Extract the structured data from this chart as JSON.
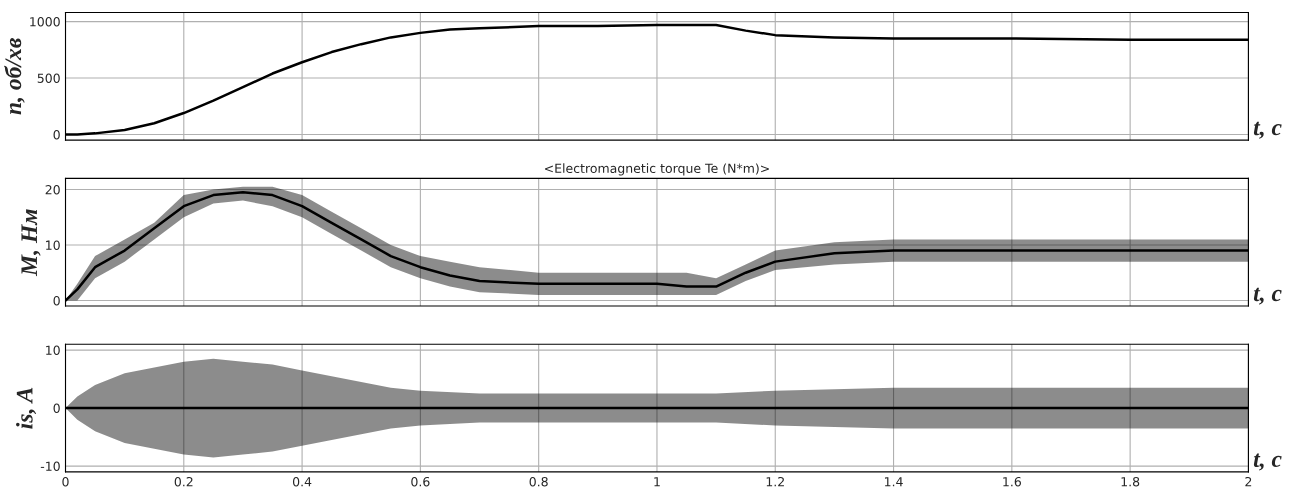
{
  "chart_data": [
    {
      "type": "line",
      "ylabel": "n, об/хв",
      "xlabel": "t, c",
      "xlim": [
        0,
        2
      ],
      "xticks": [
        0,
        0.2,
        0.4,
        0.6,
        0.8,
        1,
        1.2,
        1.4,
        1.6,
        1.8,
        2
      ],
      "ylim": [
        -50,
        1080
      ],
      "yticks": [
        0,
        500,
        1000
      ],
      "grid": true,
      "tick_labels": "y",
      "series": [
        {
          "color": "#000000",
          "x": [
            0,
            0.02,
            0.05,
            0.1,
            0.15,
            0.2,
            0.25,
            0.3,
            0.35,
            0.4,
            0.45,
            0.5,
            0.55,
            0.6,
            0.65,
            0.7,
            0.8,
            0.9,
            1.0,
            1.1,
            1.15,
            1.2,
            1.3,
            1.4,
            1.6,
            1.8,
            2.0
          ],
          "values": [
            0,
            0,
            10,
            40,
            100,
            190,
            300,
            420,
            540,
            640,
            730,
            800,
            860,
            900,
            930,
            940,
            960,
            960,
            970,
            970,
            920,
            880,
            860,
            850,
            850,
            840,
            840
          ]
        }
      ]
    },
    {
      "type": "line",
      "title": "<Electromagnetic torque Te (N*m)>",
      "ylabel": "M, Нм",
      "xlabel": "t, c",
      "xlim": [
        0,
        2
      ],
      "xticks": [
        0,
        0.2,
        0.4,
        0.6,
        0.8,
        1,
        1.2,
        1.4,
        1.6,
        1.8,
        2
      ],
      "ylim": [
        -1,
        22
      ],
      "yticks": [
        0,
        10,
        20
      ],
      "grid": true,
      "tick_labels": "y",
      "series": [
        {
          "color": "#000000",
          "x": [
            0,
            0.02,
            0.05,
            0.1,
            0.15,
            0.2,
            0.25,
            0.3,
            0.35,
            0.4,
            0.45,
            0.5,
            0.55,
            0.6,
            0.65,
            0.7,
            0.8,
            0.9,
            1.0,
            1.05,
            1.1,
            1.15,
            1.2,
            1.3,
            1.4,
            1.5,
            1.6,
            1.8,
            2.0
          ],
          "values": [
            0,
            2,
            6,
            9,
            13,
            17,
            19,
            19.5,
            19,
            17,
            14,
            11,
            8,
            6,
            4.5,
            3.5,
            3,
            3,
            3,
            2.5,
            2.5,
            5,
            7,
            8.5,
            9,
            9,
            9,
            9,
            9
          ],
          "lower": [
            0,
            0,
            4,
            7,
            11,
            15,
            17.5,
            18,
            17,
            15,
            12,
            9,
            6,
            4,
            2.5,
            1.5,
            1,
            1,
            1,
            1,
            1,
            3.5,
            5.5,
            6.5,
            7,
            7,
            7,
            7,
            7
          ],
          "upper": [
            0,
            3,
            8,
            11,
            14,
            19,
            20,
            20.5,
            20.5,
            19,
            16,
            13,
            10,
            8,
            7,
            6,
            5,
            5,
            5,
            5,
            4,
            6.5,
            9,
            10.5,
            11,
            11,
            11,
            11,
            11
          ]
        }
      ]
    },
    {
      "type": "line",
      "ylabel": "is, A",
      "xlabel": "t, c",
      "xlim": [
        0,
        2
      ],
      "xticks": [
        0,
        0.2,
        0.4,
        0.6,
        0.8,
        1,
        1.2,
        1.4,
        1.6,
        1.8,
        2
      ],
      "ylim": [
        -11,
        11
      ],
      "yticks": [
        -10,
        0,
        10
      ],
      "grid": true,
      "series": [
        {
          "color": "#000000",
          "x": [
            0,
            0.02,
            0.05,
            0.1,
            0.15,
            0.2,
            0.25,
            0.3,
            0.35,
            0.4,
            0.45,
            0.5,
            0.55,
            0.6,
            0.7,
            0.8,
            1.0,
            1.1,
            1.2,
            1.4,
            1.6,
            2.0
          ],
          "values": [
            0,
            0,
            0,
            0,
            0,
            0,
            0,
            0,
            0,
            0,
            0,
            0,
            0,
            0,
            0,
            0,
            0,
            0,
            0,
            0,
            0,
            0
          ],
          "lower": [
            0,
            -2,
            -4,
            -6,
            -7,
            -8,
            -8.5,
            -8,
            -7.5,
            -6.5,
            -5.5,
            -4.5,
            -3.5,
            -3,
            -2.5,
            -2.5,
            -2.5,
            -2.5,
            -3,
            -3.5,
            -3.5,
            -3.5
          ],
          "upper": [
            0,
            2,
            4,
            6,
            7,
            8,
            8.5,
            8,
            7.5,
            6.5,
            5.5,
            4.5,
            3.5,
            3,
            2.5,
            2.5,
            2.5,
            2.5,
            3,
            3.5,
            3.5,
            3.5
          ]
        }
      ]
    }
  ]
}
